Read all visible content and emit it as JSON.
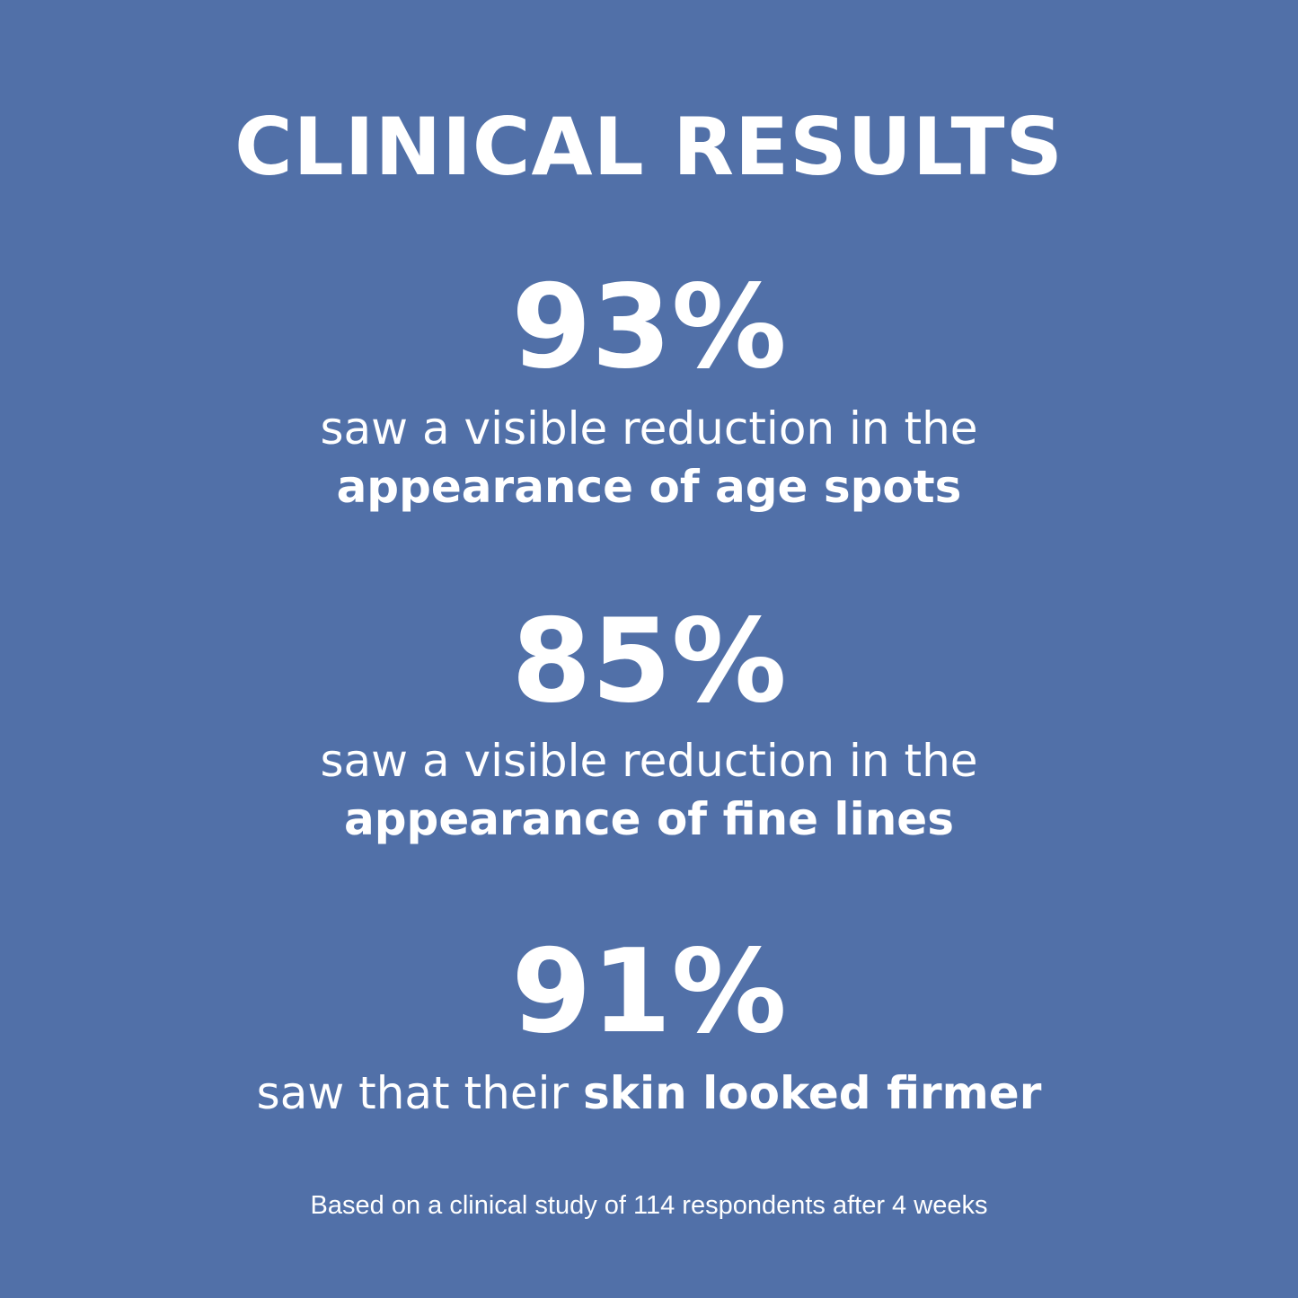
{
  "title": "CLINICAL RESULTS",
  "background_color": "#5170a8",
  "stats": [
    {
      "value": "93%",
      "line1": "saw a visible reduction in the",
      "line2_bold": "appearance of age spots"
    },
    {
      "value": "85%",
      "line1": "saw a visible reduction in the",
      "line2_bold": "appearance of fine lines"
    },
    {
      "value": "91%",
      "line_regular": "saw that their ",
      "line_bold": "skin looked firmer"
    }
  ],
  "footer": "Based on a clinical study of 114 respondents after 4 weeks"
}
